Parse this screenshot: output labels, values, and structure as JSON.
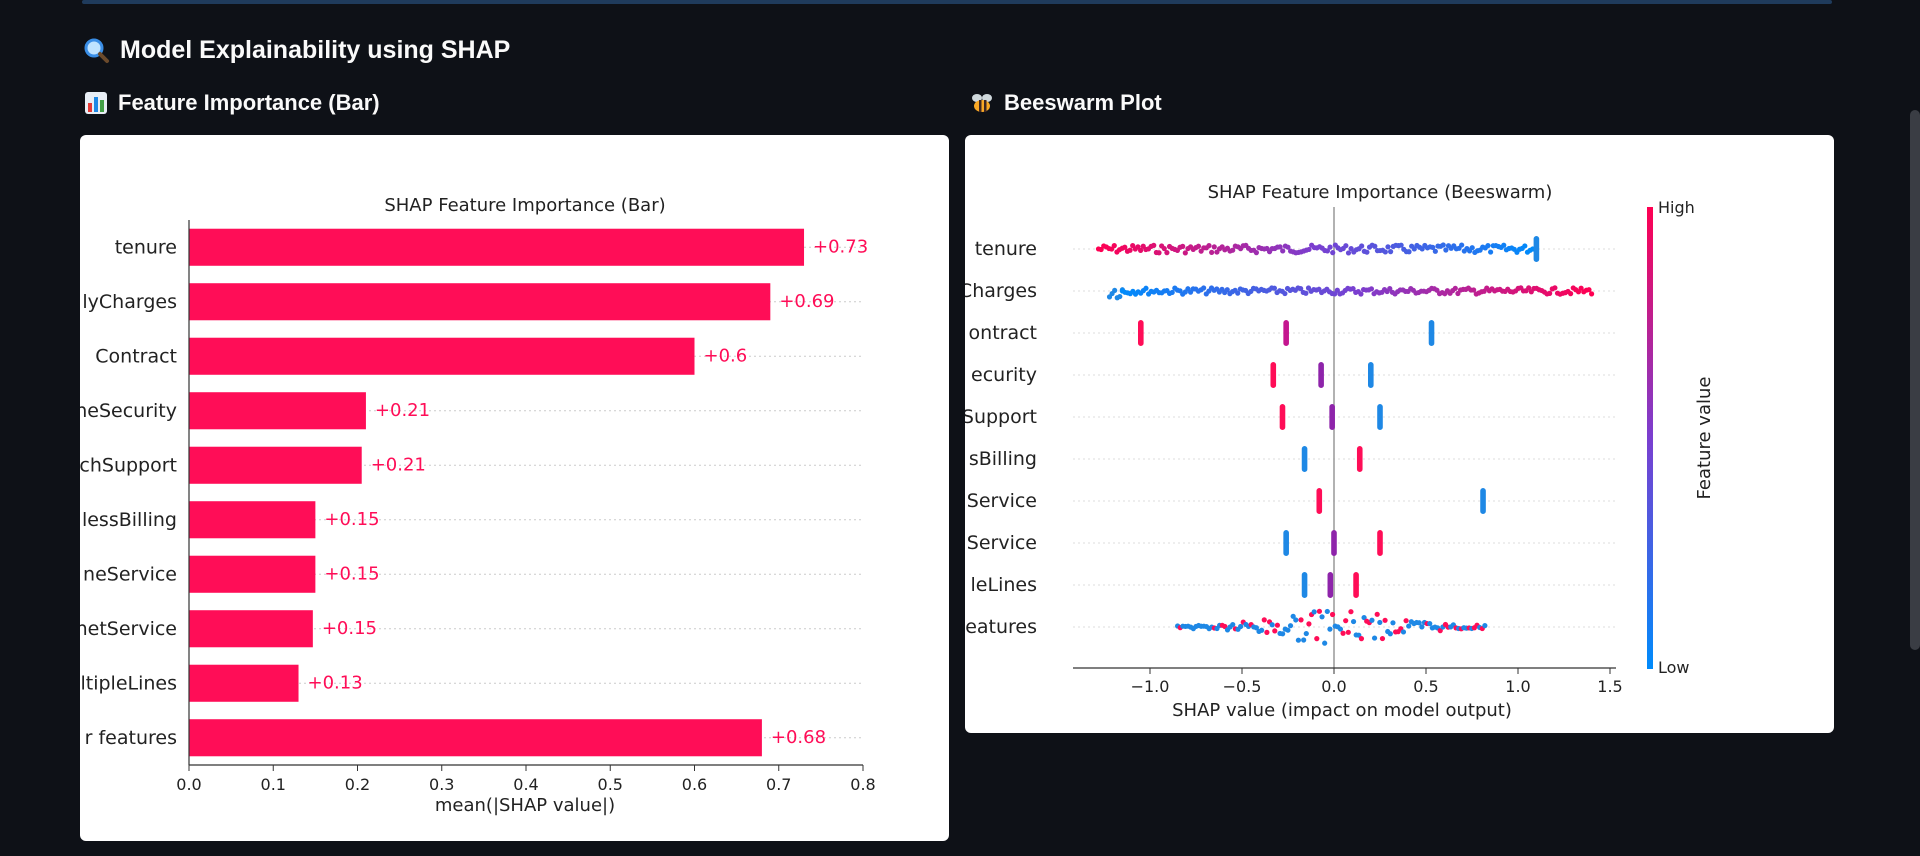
{
  "page": {
    "section_title": "Model Explainability using SHAP",
    "section_icon": "magnifier-icon"
  },
  "bar_panel": {
    "heading": "Feature Importance (Bar)",
    "icon": "bar-chart-icon"
  },
  "beeswarm_panel": {
    "heading": "Beeswarm Plot",
    "icon": "bee-icon"
  },
  "colors": {
    "shap_red": "#ff0d57",
    "shap_blue": "#1e88e5",
    "shap_purple": "#8e24aa",
    "background": "#0e1117",
    "card": "#ffffff"
  },
  "chart_data": [
    {
      "type": "bar",
      "title": "SHAP Feature Importance (Bar)",
      "xlabel": "mean(|SHAP value|)",
      "ylabel": "",
      "xlim": [
        0,
        0.8
      ],
      "xticks": [
        "0.0",
        "0.1",
        "0.2",
        "0.3",
        "0.4",
        "0.5",
        "0.6",
        "0.7",
        "0.8"
      ],
      "categories": [
        "tenure",
        "lyCharges",
        "Contract",
        "neSecurity",
        "chSupport",
        "lessBilling",
        "neService",
        "netService",
        "ltipleLines",
        "r features"
      ],
      "values": [
        0.73,
        0.69,
        0.6,
        0.21,
        0.205,
        0.15,
        0.15,
        0.147,
        0.13,
        0.68
      ],
      "labels": [
        "+0.73",
        "+0.69",
        "+0.6",
        "+0.21",
        "+0.21",
        "+0.15",
        "+0.15",
        "+0.15",
        "+0.13",
        "+0.68"
      ],
      "color": "#ff0d57",
      "grid": "horizontal dotted"
    },
    {
      "type": "scatter",
      "title": "SHAP Feature Importance (Beeswarm)",
      "xlabel": "SHAP value (impact on model output)",
      "xlim": [
        -1.4,
        1.55
      ],
      "xticks": [
        "−1.0",
        "−0.5",
        "0.0",
        "0.5",
        "1.0",
        "1.5"
      ],
      "features": [
        "tenure",
        "Charges",
        "ontract",
        "ecurity",
        "Support",
        "sBilling",
        "Service",
        "Service",
        "leLines",
        "eatures"
      ],
      "colorbar": {
        "label": "Feature value",
        "high": "High",
        "low": "Low"
      },
      "series": [
        {
          "clusters": [
            {
              "x_from": -1.28,
              "x_to": 1.08,
              "spread": 1.0,
              "gradient": "red-to-blue"
            },
            {
              "x": 1.1,
              "color": "#1e88e5"
            }
          ]
        },
        {
          "clusters": [
            {
              "x_from": -1.22,
              "x_to": -1.15,
              "spread": 1.8,
              "color": "#1e88e5"
            },
            {
              "x_from": -1.15,
              "x_to": 1.4,
              "spread": 0.8,
              "gradient": "blue-to-red"
            }
          ]
        },
        {
          "clusters": [
            {
              "x": -1.05,
              "color": "#ff0d57"
            },
            {
              "x": -0.26,
              "color": "#c4168f"
            },
            {
              "x": 0.53,
              "color": "#1e88e5"
            }
          ]
        },
        {
          "clusters": [
            {
              "x": -0.33,
              "color": "#ff0d57"
            },
            {
              "x": -0.07,
              "color": "#8e24aa"
            },
            {
              "x": 0.2,
              "color": "#1e88e5"
            }
          ]
        },
        {
          "clusters": [
            {
              "x": -0.28,
              "color": "#ff0d57"
            },
            {
              "x": -0.01,
              "color": "#8e24aa"
            },
            {
              "x": 0.25,
              "color": "#1e88e5"
            }
          ]
        },
        {
          "clusters": [
            {
              "x": -0.16,
              "color": "#1e88e5"
            },
            {
              "x": 0.14,
              "color": "#ff0d57"
            }
          ]
        },
        {
          "clusters": [
            {
              "x": -0.08,
              "color": "#ff0d57"
            },
            {
              "x": 0.81,
              "color": "#1e88e5"
            }
          ]
        },
        {
          "clusters": [
            {
              "x": -0.26,
              "color": "#1e88e5"
            },
            {
              "x": 0.0,
              "color": "#8e24aa"
            },
            {
              "x": 0.25,
              "color": "#ff0d57"
            }
          ]
        },
        {
          "clusters": [
            {
              "x": -0.16,
              "color": "#1e88e5"
            },
            {
              "x": -0.02,
              "color": "#8e24aa"
            },
            {
              "x": 0.12,
              "color": "#ff0d57"
            }
          ]
        },
        {
          "clusters": [
            {
              "x_from": -0.85,
              "x_to": 0.82,
              "spread": 2.2,
              "gradient": "mixed"
            }
          ]
        }
      ]
    }
  ]
}
